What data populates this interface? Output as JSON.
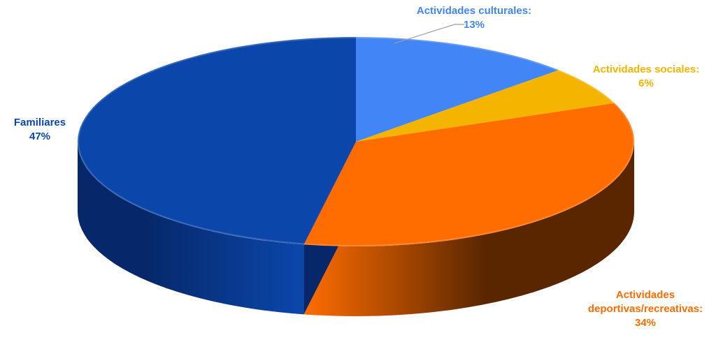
{
  "chart_data": {
    "type": "pie",
    "variant": "3d",
    "title": "",
    "start_angle_deg": 0,
    "direction": "clockwise",
    "slices": [
      {
        "name": "Actividades culturales",
        "value": 13,
        "label_lines": [
          "Actividades culturales:",
          "13%"
        ],
        "color": "#4285f4",
        "shade": "#2a5bb0",
        "label_color": "#4285f4",
        "label_placement": "top-right",
        "leader_line": true
      },
      {
        "name": "Actividades sociales",
        "value": 6,
        "label_lines": [
          "Actividades sociales:",
          "6%"
        ],
        "color": "#f4b400",
        "shade": "#a97c00",
        "label_color": "#f4b400",
        "label_placement": "right",
        "leader_line": false
      },
      {
        "name": "Actividades deportivas/recreativas",
        "value": 34,
        "label_lines": [
          "Actividades",
          "deportivas/recreativas:",
          "34%"
        ],
        "color": "#ff6d01",
        "shade": "#5a2600",
        "label_color": "#ff6d01",
        "label_placement": "bottom-right",
        "leader_line": false
      },
      {
        "name": "Familiares",
        "value": 47,
        "label_lines": [
          "Familiares",
          "47%"
        ],
        "color": "#0b47ab",
        "shade": "#06286a",
        "label_color": "#0b47ab",
        "label_placement": "left",
        "leader_line": false
      }
    ],
    "legend": "none",
    "grid": false
  }
}
